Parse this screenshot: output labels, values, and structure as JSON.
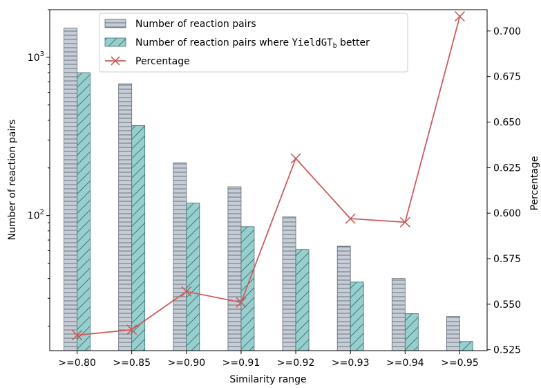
{
  "chart_data": {
    "type": "bar",
    "categories": [
      ">=0.80",
      ">=0.85",
      ">=0.90",
      ">=0.91",
      ">=0.92",
      ">=0.93",
      ">=0.94",
      ">=0.95"
    ],
    "xlabel": "Similarity range",
    "ylabel": "Number of reaction pairs",
    "ylabel_right": "Percentage",
    "y_scale": "log",
    "ylim": [
      14,
      2000
    ],
    "y_ticks": [
      {
        "value": 100,
        "base": "10",
        "exp": "2"
      },
      {
        "value": 1000,
        "base": "10",
        "exp": "3"
      }
    ],
    "y2lim": [
      0.5245,
      0.7117
    ],
    "y2_ticks": [
      "0.525",
      "0.550",
      "0.575",
      "0.600",
      "0.625",
      "0.650",
      "0.675",
      "0.700"
    ],
    "series": [
      {
        "name": "Number of reaction pairs",
        "kind": "bar",
        "axis": "left",
        "color": "#c7cdd6",
        "hatch": "horizontal",
        "values": [
          1530,
          680,
          215,
          152,
          98,
          64,
          40,
          23
        ]
      },
      {
        "name_prefix": "Number of reaction pairs where ",
        "name_code": "YieldGT",
        "name_sub": "b",
        "name_suffix": " better",
        "kind": "bar",
        "axis": "left",
        "color": "#97cfce",
        "hatch": "diagonal",
        "values": [
          800,
          370,
          120,
          85,
          61,
          38,
          24,
          16
        ]
      },
      {
        "name": "Percentage",
        "kind": "line",
        "axis": "right",
        "color": "#cd5c5c",
        "marker": "x",
        "values": [
          0.533,
          0.536,
          0.557,
          0.551,
          0.63,
          0.597,
          0.595,
          0.708
        ]
      }
    ],
    "legend_position": "top-center",
    "grid": false
  }
}
